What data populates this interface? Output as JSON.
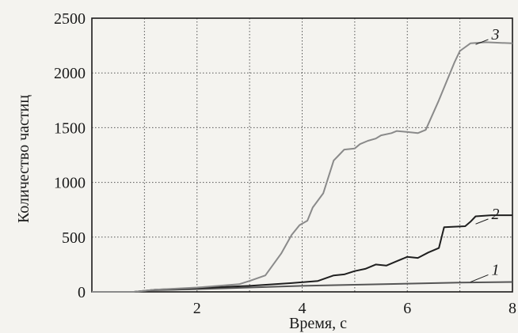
{
  "chart_data": {
    "type": "line",
    "title": "",
    "xlabel": "Время, с",
    "ylabel": "Количество частиц",
    "xlim": [
      0,
      8
    ],
    "ylim": [
      0,
      2500
    ],
    "x_ticks": [
      2,
      4,
      6,
      8
    ],
    "y_ticks": [
      0,
      500,
      1000,
      1500,
      2000,
      2500
    ],
    "x_gridlines": [
      1,
      2,
      3,
      4,
      5,
      6,
      7,
      8
    ],
    "grid": true,
    "grid_style": "dotted",
    "legend": "none",
    "colors": {
      "axis": "#1a1a1a",
      "grid": "#555555",
      "series_1": "#555555",
      "series_2": "#1f1f1f",
      "series_3": "#8a8a8a"
    },
    "series": [
      {
        "name": "1",
        "color": "#555555",
        "label_at": [
          7.6,
          170
        ],
        "leader_to": [
          7.2,
          90
        ],
        "points": [
          [
            0,
            0
          ],
          [
            0.8,
            0
          ],
          [
            1.2,
            15
          ],
          [
            2,
            25
          ],
          [
            3,
            40
          ],
          [
            4,
            55
          ],
          [
            5,
            65
          ],
          [
            6,
            75
          ],
          [
            7,
            85
          ],
          [
            8,
            90
          ]
        ]
      },
      {
        "name": "2",
        "color": "#1f1f1f",
        "label_at": [
          7.6,
          680
        ],
        "leader_to": [
          7.3,
          620
        ],
        "points": [
          [
            0,
            0
          ],
          [
            0.8,
            0
          ],
          [
            1.2,
            20
          ],
          [
            2,
            35
          ],
          [
            3,
            55
          ],
          [
            3.8,
            80
          ],
          [
            4.3,
            100
          ],
          [
            4.6,
            150
          ],
          [
            4.8,
            160
          ],
          [
            5.0,
            190
          ],
          [
            5.2,
            210
          ],
          [
            5.4,
            250
          ],
          [
            5.6,
            240
          ],
          [
            5.8,
            280
          ],
          [
            6.0,
            320
          ],
          [
            6.2,
            310
          ],
          [
            6.4,
            360
          ],
          [
            6.6,
            400
          ],
          [
            6.7,
            590
          ],
          [
            7.1,
            600
          ],
          [
            7.2,
            640
          ],
          [
            7.3,
            690
          ],
          [
            7.6,
            700
          ],
          [
            8,
            700
          ]
        ]
      },
      {
        "name": "3",
        "color": "#8a8a8a",
        "label_at": [
          7.6,
          2320
        ],
        "leader_to": [
          7.3,
          2260
        ],
        "points": [
          [
            0,
            0
          ],
          [
            0.8,
            0
          ],
          [
            1.2,
            20
          ],
          [
            2,
            40
          ],
          [
            2.8,
            70
          ],
          [
            3.0,
            100
          ],
          [
            3.3,
            150
          ],
          [
            3.6,
            350
          ],
          [
            3.8,
            520
          ],
          [
            3.95,
            610
          ],
          [
            4.1,
            650
          ],
          [
            4.2,
            770
          ],
          [
            4.4,
            900
          ],
          [
            4.5,
            1050
          ],
          [
            4.6,
            1200
          ],
          [
            4.7,
            1250
          ],
          [
            4.8,
            1300
          ],
          [
            5.0,
            1310
          ],
          [
            5.1,
            1350
          ],
          [
            5.25,
            1380
          ],
          [
            5.4,
            1400
          ],
          [
            5.5,
            1430
          ],
          [
            5.7,
            1450
          ],
          [
            5.8,
            1470
          ],
          [
            6.0,
            1460
          ],
          [
            6.2,
            1450
          ],
          [
            6.35,
            1480
          ],
          [
            6.6,
            1750
          ],
          [
            6.9,
            2100
          ],
          [
            7.0,
            2200
          ],
          [
            7.2,
            2270
          ],
          [
            7.5,
            2280
          ],
          [
            8,
            2270
          ]
        ]
      }
    ]
  }
}
